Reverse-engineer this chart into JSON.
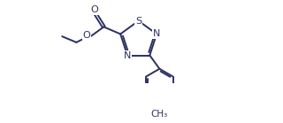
{
  "bg_color": "#ffffff",
  "bond_color": "#2c3060",
  "lw": 1.4,
  "figsize": [
    3.2,
    1.39
  ],
  "dpi": 100,
  "xlim": [
    0,
    320
  ],
  "ylim": [
    0,
    139
  ]
}
